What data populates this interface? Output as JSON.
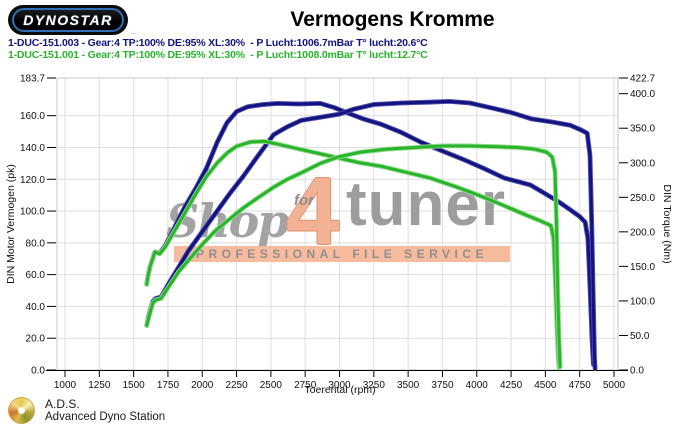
{
  "header": {
    "logo_text": "DYNOSTAR",
    "logo_subtext": "…",
    "title": "Vermogens Kromme"
  },
  "legend": [
    {
      "label": "1-DUC-151.003 - Gear:4 TP:100% DE:95% XL:30%  - P Lucht:1006.7mBar T° lucht:20.6°C",
      "color": "#13137f"
    },
    {
      "label": "1-DUC-151.001 - Gear:4 TP:100% DE:95% XL:30%  - P Lucht:1008.0mBar T° lucht:12.7°C",
      "color": "#2bb32b"
    }
  ],
  "watermark": {
    "word_shop": "Shop",
    "word_for": "for",
    "word_4": "4",
    "word_tuner": "tuner",
    "tagline": "PROFESSIONAL FILE SERVICE"
  },
  "footer": {
    "abbr": "A.D.S.",
    "name": "Advanced Dyno Station"
  },
  "chart_data": {
    "type": "line",
    "title": "Vermogens Kromme",
    "grid": true,
    "x_axis": {
      "label": "Toerental (rpm)",
      "min": 1000,
      "max": 5000,
      "ticks": [
        {
          "value": 1000,
          "label": "1000"
        },
        {
          "value": 1250,
          "label": "1250"
        },
        {
          "value": 1500,
          "label": "1500"
        },
        {
          "value": 1750,
          "label": "1750"
        },
        {
          "value": 2000,
          "label": "2000"
        },
        {
          "value": 2250,
          "label": "2250"
        },
        {
          "value": 2500,
          "label": "2500"
        },
        {
          "value": 2750,
          "label": "2750"
        },
        {
          "value": 3000,
          "label": "3000"
        },
        {
          "value": 3250,
          "label": "3250"
        },
        {
          "value": 3500,
          "label": "3500"
        },
        {
          "value": 3750,
          "label": "3750"
        },
        {
          "value": 4000,
          "label": "4000"
        },
        {
          "value": 4250,
          "label": "4250"
        },
        {
          "value": 4500,
          "label": "4500"
        },
        {
          "value": 4750,
          "label": "4750"
        },
        {
          "value": 5000,
          "label": "5000"
        }
      ]
    },
    "y_left": {
      "label": "DIN Motor Vermogen (pk)",
      "min": 0,
      "max": 183.7,
      "ticks": [
        {
          "value": 183.7,
          "label": "183.7"
        },
        {
          "value": 160,
          "label": "160.0"
        },
        {
          "value": 140,
          "label": "140.0"
        },
        {
          "value": 120,
          "label": "120.0"
        },
        {
          "value": 100,
          "label": "100.0"
        },
        {
          "value": 80,
          "label": "80.0"
        },
        {
          "value": 60,
          "label": "60.0"
        },
        {
          "value": 40,
          "label": "40.0"
        },
        {
          "value": 20,
          "label": "20.0"
        },
        {
          "value": 0,
          "label": "0.0"
        }
      ]
    },
    "y_right": {
      "label": "DIN Torque (Nm)",
      "min": 0,
      "max": 422.7,
      "ticks": [
        {
          "value": 422.7,
          "label": "422.7"
        },
        {
          "value": 400,
          "label": "400.0"
        },
        {
          "value": 350,
          "label": "350.0"
        },
        {
          "value": 300,
          "label": "300.0"
        },
        {
          "value": 250,
          "label": "250.0"
        },
        {
          "value": 200,
          "label": "200.0"
        },
        {
          "value": 150,
          "label": "150.0"
        },
        {
          "value": 100,
          "label": "100.0"
        },
        {
          "value": 50,
          "label": "50.0"
        },
        {
          "value": 0,
          "label": "0.0"
        }
      ]
    },
    "series": [
      {
        "name": "torque-run-003",
        "run": "1-DUC-151.003",
        "unit": "Nm",
        "axis": "right",
        "color": "#13137f",
        "halo": "#4c4cae",
        "points": [
          [
            1595,
            124
          ],
          [
            1605,
            136
          ],
          [
            1620,
            150
          ],
          [
            1655,
            171
          ],
          [
            1690,
            169
          ],
          [
            1730,
            180
          ],
          [
            1800,
            207
          ],
          [
            1870,
            235
          ],
          [
            1950,
            262
          ],
          [
            2030,
            292
          ],
          [
            2110,
            330
          ],
          [
            2180,
            358
          ],
          [
            2250,
            374
          ],
          [
            2330,
            381
          ],
          [
            2430,
            384
          ],
          [
            2550,
            386
          ],
          [
            2700,
            385
          ],
          [
            2860,
            386
          ],
          [
            2960,
            380
          ],
          [
            3060,
            372
          ],
          [
            3180,
            363
          ],
          [
            3300,
            356
          ],
          [
            3450,
            344
          ],
          [
            3590,
            330
          ],
          [
            3750,
            317
          ],
          [
            3900,
            305
          ],
          [
            4050,
            292
          ],
          [
            4200,
            278
          ],
          [
            4390,
            268
          ],
          [
            4500,
            255
          ],
          [
            4600,
            243
          ],
          [
            4680,
            232
          ],
          [
            4750,
            222
          ],
          [
            4790,
            214
          ],
          [
            4810,
            190
          ],
          [
            4825,
            120
          ],
          [
            4840,
            45
          ],
          [
            4850,
            8
          ]
        ]
      },
      {
        "name": "power-run-003",
        "run": "1-DUC-151.003",
        "unit": "pk",
        "axis": "left",
        "color": "#13137f",
        "halo": "#4c4cae",
        "points": [
          [
            1595,
            28
          ],
          [
            1610,
            34
          ],
          [
            1640,
            43
          ],
          [
            1660,
            45
          ],
          [
            1700,
            46
          ],
          [
            1760,
            55
          ],
          [
            1830,
            65
          ],
          [
            1900,
            75
          ],
          [
            2000,
            87
          ],
          [
            2100,
            99
          ],
          [
            2200,
            111
          ],
          [
            2300,
            122
          ],
          [
            2400,
            134
          ],
          [
            2520,
            148
          ],
          [
            2620,
            153
          ],
          [
            2720,
            157
          ],
          [
            2860,
            159
          ],
          [
            3000,
            161
          ],
          [
            3100,
            164
          ],
          [
            3250,
            167
          ],
          [
            3450,
            168
          ],
          [
            3650,
            168.5
          ],
          [
            3800,
            169
          ],
          [
            3950,
            168
          ],
          [
            4100,
            165
          ],
          [
            4250,
            162
          ],
          [
            4400,
            158
          ],
          [
            4550,
            156
          ],
          [
            4680,
            154
          ],
          [
            4760,
            151
          ],
          [
            4805,
            149
          ],
          [
            4825,
            135
          ],
          [
            4838,
            90
          ],
          [
            4850,
            40
          ],
          [
            4858,
            8
          ],
          [
            4862,
            1
          ]
        ]
      },
      {
        "name": "torque-run-001",
        "run": "1-DUC-151.001",
        "unit": "Nm",
        "axis": "right",
        "color": "#2bb32b",
        "halo": "#8fdc8f",
        "points": [
          [
            1595,
            124
          ],
          [
            1605,
            136
          ],
          [
            1620,
            150
          ],
          [
            1655,
            171
          ],
          [
            1690,
            168
          ],
          [
            1730,
            178
          ],
          [
            1800,
            202
          ],
          [
            1870,
            226
          ],
          [
            1950,
            254
          ],
          [
            2030,
            280
          ],
          [
            2110,
            300
          ],
          [
            2180,
            314
          ],
          [
            2250,
            324
          ],
          [
            2350,
            330
          ],
          [
            2450,
            331
          ],
          [
            2550,
            327
          ],
          [
            2700,
            320
          ],
          [
            2860,
            313
          ],
          [
            2990,
            307
          ],
          [
            3150,
            300
          ],
          [
            3300,
            295
          ],
          [
            3450,
            288
          ],
          [
            3660,
            278
          ],
          [
            3850,
            265
          ],
          [
            4000,
            254
          ],
          [
            4150,
            242
          ],
          [
            4315,
            228
          ],
          [
            4450,
            217
          ],
          [
            4540,
            209
          ],
          [
            4560,
            190
          ],
          [
            4572,
            130
          ],
          [
            4585,
            60
          ],
          [
            4595,
            15
          ],
          [
            4600,
            3
          ]
        ]
      },
      {
        "name": "power-run-001",
        "run": "1-DUC-151.001",
        "unit": "pk",
        "axis": "left",
        "color": "#2bb32b",
        "halo": "#8fdc8f",
        "points": [
          [
            1595,
            28
          ],
          [
            1610,
            33
          ],
          [
            1640,
            42
          ],
          [
            1660,
            44
          ],
          [
            1700,
            45
          ],
          [
            1760,
            53
          ],
          [
            1830,
            62
          ],
          [
            1900,
            69
          ],
          [
            2000,
            79
          ],
          [
            2100,
            88
          ],
          [
            2200,
            95
          ],
          [
            2300,
            102
          ],
          [
            2400,
            108
          ],
          [
            2520,
            115
          ],
          [
            2620,
            120
          ],
          [
            2720,
            124
          ],
          [
            2860,
            130
          ],
          [
            2990,
            134
          ],
          [
            3150,
            137
          ],
          [
            3350,
            139
          ],
          [
            3550,
            140
          ],
          [
            3750,
            141
          ],
          [
            3950,
            141
          ],
          [
            4150,
            140.5
          ],
          [
            4300,
            140
          ],
          [
            4420,
            139
          ],
          [
            4510,
            137
          ],
          [
            4550,
            134
          ],
          [
            4570,
            125
          ],
          [
            4580,
            95
          ],
          [
            4590,
            50
          ],
          [
            4600,
            18
          ],
          [
            4607,
            2
          ]
        ]
      }
    ]
  }
}
